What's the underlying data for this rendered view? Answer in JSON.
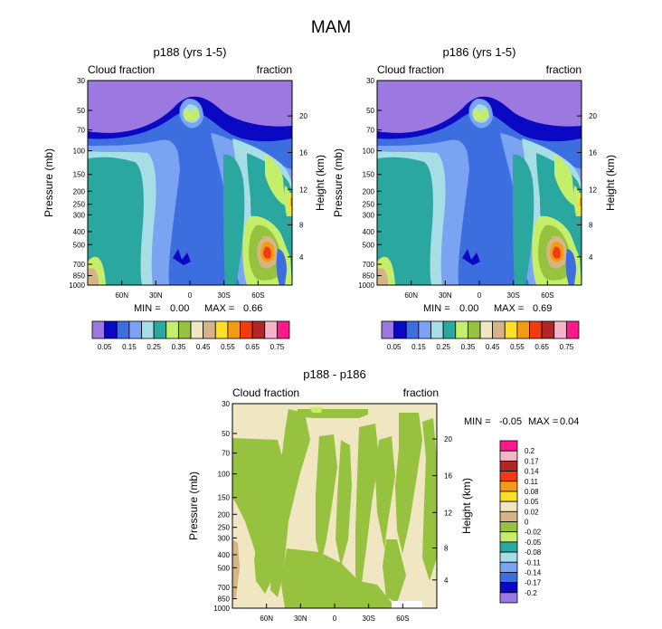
{
  "figure_title": "MAM",
  "colors": {
    "purple": "#9c79e0",
    "navy": "#0a08c2",
    "blue": "#3c6ee0",
    "lightblue": "#7aa3f2",
    "paleblue": "#a7dde5",
    "teal": "#2aa8a0",
    "lightgreen": "#c5ee6a",
    "green": "#96c23f",
    "beige": "#f0e6c2",
    "tan": "#d7b486",
    "yellow": "#fbe027",
    "orange": "#f59a14",
    "redorange": "#f03a14",
    "darkred": "#b32626",
    "pink": "#f7b4c7",
    "magenta": "#ff1a8c",
    "white": "#ffffff"
  },
  "chart_data": [
    {
      "type": "heatmap",
      "title": "p188 (yrs 1-5)",
      "left_label": "Cloud fraction",
      "right_label": "fraction",
      "ylabel": "Pressure (mb)",
      "y2label": "Height (km)",
      "x_ticks": [
        "60N",
        "30N",
        "0",
        "30S",
        "60S"
      ],
      "x_tick_lat": [
        60,
        30,
        0,
        -30,
        -60
      ],
      "x_range": [
        90,
        -90
      ],
      "pressure_ticks": [
        "30",
        "50",
        "70",
        "100",
        "150",
        "200",
        "250",
        "300",
        "400",
        "500",
        "700",
        "850",
        "1000"
      ],
      "pressure_values": [
        30,
        50,
        70,
        100,
        150,
        200,
        250,
        300,
        400,
        500,
        700,
        850,
        1000
      ],
      "pressure_range": [
        30,
        1000
      ],
      "height_ticks": [
        "20",
        "16",
        "12",
        "8",
        "4"
      ],
      "height_pressure": [
        55,
        103,
        194,
        356,
        616
      ],
      "min_label": "MIN =",
      "min_value": "0.00",
      "max_label": "MAX =",
      "max_value": "0.66",
      "colorbar_labels": [
        "0.05",
        "0.15",
        "0.25",
        "0.35",
        "0.45",
        "0.55",
        "0.65",
        "0.75"
      ]
    },
    {
      "type": "heatmap",
      "title": "p186 (yrs 1-5)",
      "left_label": "Cloud fraction",
      "right_label": "fraction",
      "ylabel": "Pressure (mb)",
      "y2label": "Height (km)",
      "x_ticks": [
        "60N",
        "30N",
        "0",
        "30S",
        "60S"
      ],
      "x_tick_lat": [
        60,
        30,
        0,
        -30,
        -60
      ],
      "x_range": [
        90,
        -90
      ],
      "pressure_ticks": [
        "30",
        "50",
        "70",
        "100",
        "150",
        "200",
        "250",
        "300",
        "400",
        "500",
        "700",
        "850",
        "1000"
      ],
      "pressure_values": [
        30,
        50,
        70,
        100,
        150,
        200,
        250,
        300,
        400,
        500,
        700,
        850,
        1000
      ],
      "pressure_range": [
        30,
        1000
      ],
      "height_ticks": [
        "20",
        "16",
        "12",
        "8",
        "4"
      ],
      "height_pressure": [
        55,
        103,
        194,
        356,
        616
      ],
      "min_label": "MIN =",
      "min_value": "0.00",
      "max_label": "MAX =",
      "max_value": "0.69",
      "colorbar_labels": [
        "0.05",
        "0.15",
        "0.25",
        "0.35",
        "0.45",
        "0.55",
        "0.65",
        "0.75"
      ]
    },
    {
      "type": "heatmap",
      "title": "p188 - p186",
      "left_label": "Cloud fraction",
      "right_label": "fraction",
      "ylabel": "Pressure (mb)",
      "y2label": "Height (km)",
      "x_ticks": [
        "60N",
        "30N",
        "0",
        "30S",
        "60S"
      ],
      "x_tick_lat": [
        60,
        30,
        0,
        -30,
        -60
      ],
      "x_range": [
        90,
        -90
      ],
      "pressure_ticks": [
        "30",
        "50",
        "70",
        "100",
        "150",
        "200",
        "250",
        "300",
        "400",
        "500",
        "700",
        "850",
        "1000"
      ],
      "pressure_values": [
        30,
        50,
        70,
        100,
        150,
        200,
        250,
        300,
        400,
        500,
        700,
        850,
        1000
      ],
      "pressure_range": [
        30,
        1000
      ],
      "height_ticks": [
        "20",
        "16",
        "12",
        "8",
        "4"
      ],
      "height_pressure": [
        55,
        103,
        194,
        356,
        616
      ],
      "min_label": "MIN =",
      "min_value": "-0.05",
      "max_label": "MAX =",
      "max_value": "0.04",
      "colorbar_labels": [
        "0.2",
        "0.17",
        "0.14",
        "0.11",
        "0.08",
        "0.05",
        "0.02",
        "0",
        "-0.02",
        "-0.05",
        "-0.08",
        "-0.11",
        "-0.14",
        "-0.17",
        "-0.2"
      ]
    }
  ]
}
